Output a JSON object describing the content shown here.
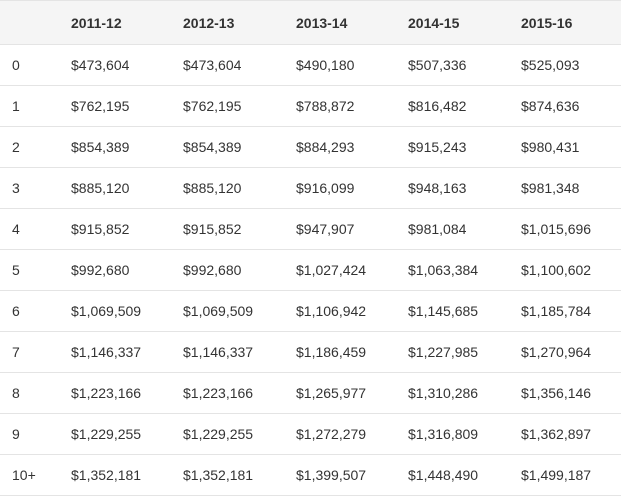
{
  "table": {
    "headers": [
      "",
      "2011-12",
      "2012-13",
      "2013-14",
      "2014-15",
      "2015-16"
    ],
    "rows": [
      [
        "0",
        "$473,604",
        "$473,604",
        "$490,180",
        "$507,336",
        "$525,093"
      ],
      [
        "1",
        "$762,195",
        "$762,195",
        "$788,872",
        "$816,482",
        "$874,636"
      ],
      [
        "2",
        "$854,389",
        "$854,389",
        "$884,293",
        "$915,243",
        "$980,431"
      ],
      [
        "3",
        "$885,120",
        "$885,120",
        "$916,099",
        "$948,163",
        "$981,348"
      ],
      [
        "4",
        "$915,852",
        "$915,852",
        "$947,907",
        "$981,084",
        "$1,015,696"
      ],
      [
        "5",
        "$992,680",
        "$992,680",
        "$1,027,424",
        "$1,063,384",
        "$1,100,602"
      ],
      [
        "6",
        "$1,069,509",
        "$1,069,509",
        "$1,106,942",
        "$1,145,685",
        "$1,185,784"
      ],
      [
        "7",
        "$1,146,337",
        "$1,146,337",
        "$1,186,459",
        "$1,227,985",
        "$1,270,964"
      ],
      [
        "8",
        "$1,223,166",
        "$1,223,166",
        "$1,265,977",
        "$1,310,286",
        "$1,356,146"
      ],
      [
        "9",
        "$1,229,255",
        "$1,229,255",
        "$1,272,279",
        "$1,316,809",
        "$1,362,897"
      ],
      [
        "10+",
        "$1,352,181",
        "$1,352,181",
        "$1,399,507",
        "$1,448,490",
        "$1,499,187"
      ]
    ]
  }
}
